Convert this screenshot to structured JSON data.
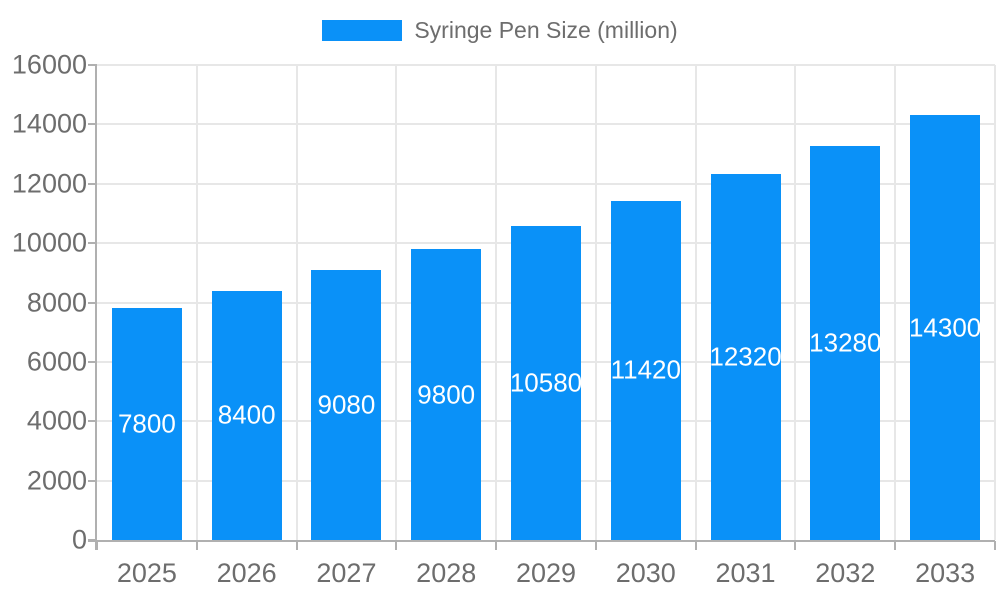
{
  "legend": {
    "label": "Syringe Pen Size (million)"
  },
  "chart_data": {
    "type": "bar",
    "title": "",
    "xlabel": "",
    "ylabel": "",
    "categories": [
      "2025",
      "2026",
      "2027",
      "2028",
      "2029",
      "2030",
      "2031",
      "2032",
      "2033"
    ],
    "values": [
      7800,
      8400,
      9080,
      9800,
      10580,
      11420,
      12320,
      13280,
      14300
    ],
    "value_labels": [
      "7800",
      "8400",
      "9080",
      "9800",
      "10580",
      "11420",
      "12320",
      "13280",
      "14300"
    ],
    "series_name": "Syringe Pen Size (million)",
    "legend_position": "top",
    "grid": true,
    "ylim": [
      0,
      16000
    ],
    "ytick_step": 2000,
    "y_tick_labels": [
      "0",
      "2000",
      "4000",
      "6000",
      "8000",
      "10000",
      "12000",
      "14000",
      "16000"
    ],
    "colors": {
      "bar": "#0a91f8",
      "value_label": "#ffffff",
      "axis_text": "#6d6d6d",
      "grid_line": "#e7e7e7",
      "axis_line": "#b0b0b0",
      "background": "#ffffff"
    }
  }
}
